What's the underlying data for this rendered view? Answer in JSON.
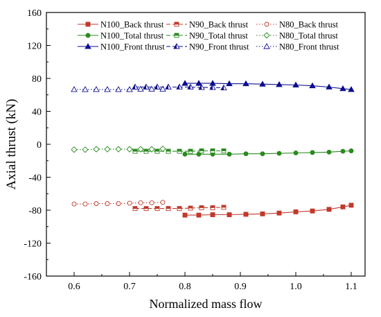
{
  "chart_data": {
    "type": "line",
    "title": "",
    "xlabel": "Normalized mass flow",
    "ylabel": "Axial thrust (kN)",
    "xlim": [
      0.55,
      1.125
    ],
    "ylim": [
      -160,
      160
    ],
    "x_ticks": [
      "0.6",
      "0.7",
      "0.8",
      "0.9",
      "1.0",
      "1.1"
    ],
    "y_ticks": [
      "-160",
      "-120",
      "-80",
      "-40",
      "0",
      "40",
      "80",
      "120",
      "160"
    ],
    "grid": false,
    "legend_position": "top-right",
    "colors": {
      "back": "#c0392b",
      "total": "#2a8a1f",
      "front": "#0d0d8f"
    },
    "series": [
      {
        "name": "N100_Back thrust",
        "group": "back",
        "speed": "N100",
        "marker": "square",
        "filled": true,
        "line": "solid",
        "x": [
          0.8,
          0.825,
          0.85,
          0.88,
          0.91,
          0.94,
          0.97,
          1.0,
          1.03,
          1.06,
          1.085,
          1.1
        ],
        "y": [
          -86,
          -86,
          -85.5,
          -85.5,
          -85,
          -84.5,
          -83.5,
          -82,
          -81,
          -79,
          -76,
          -74
        ]
      },
      {
        "name": "N90_Back thrust",
        "group": "back",
        "speed": "N90",
        "marker": "half-square",
        "filled": false,
        "line": "dash",
        "x": [
          0.71,
          0.73,
          0.75,
          0.77,
          0.79,
          0.81,
          0.83,
          0.85,
          0.87
        ],
        "y": [
          -78,
          -78,
          -78,
          -78,
          -78,
          -77.5,
          -77,
          -77,
          -76.5
        ]
      },
      {
        "name": "N80_Back thrust",
        "group": "back",
        "speed": "N80",
        "marker": "circle",
        "filled": false,
        "line": "dot",
        "x": [
          0.6,
          0.62,
          0.64,
          0.66,
          0.68,
          0.7,
          0.72,
          0.74,
          0.76
        ],
        "y": [
          -72.5,
          -72.5,
          -72,
          -72,
          -72,
          -71.5,
          -71,
          -71,
          -70.5
        ]
      },
      {
        "name": "N100_Total thrust",
        "group": "total",
        "speed": "N100",
        "marker": "circle",
        "filled": true,
        "line": "solid",
        "x": [
          0.8,
          0.825,
          0.85,
          0.88,
          0.91,
          0.94,
          0.97,
          1.0,
          1.03,
          1.06,
          1.085,
          1.1
        ],
        "y": [
          -12,
          -12,
          -12,
          -12,
          -11.5,
          -11.5,
          -11,
          -10.5,
          -10,
          -9.5,
          -8.5,
          -8
        ]
      },
      {
        "name": "N90_Total thrust",
        "group": "total",
        "speed": "N90",
        "marker": "half-square",
        "filled": false,
        "line": "dash",
        "x": [
          0.71,
          0.73,
          0.75,
          0.77,
          0.79,
          0.81,
          0.83,
          0.85,
          0.87
        ],
        "y": [
          -8.5,
          -8.5,
          -8.5,
          -8.5,
          -8.5,
          -8.5,
          -8,
          -8,
          -8
        ]
      },
      {
        "name": "N80_Total thrust",
        "group": "total",
        "speed": "N80",
        "marker": "diamond",
        "filled": false,
        "line": "dot",
        "x": [
          0.6,
          0.62,
          0.64,
          0.66,
          0.68,
          0.7,
          0.72,
          0.74,
          0.76
        ],
        "y": [
          -6.5,
          -6.5,
          -6,
          -6,
          -6,
          -6,
          -6,
          -6,
          -5.5
        ]
      },
      {
        "name": "N100_Front thrust",
        "group": "front",
        "speed": "N100",
        "marker": "triangle",
        "filled": true,
        "line": "solid",
        "x": [
          0.8,
          0.825,
          0.85,
          0.88,
          0.91,
          0.94,
          0.97,
          1.0,
          1.03,
          1.06,
          1.085,
          1.1
        ],
        "y": [
          74,
          74,
          74,
          73.5,
          73.5,
          73,
          72.5,
          72,
          71,
          69.5,
          67.5,
          66.5
        ]
      },
      {
        "name": "N90_Front thrust",
        "group": "front",
        "speed": "N90",
        "marker": "half-triangle",
        "filled": false,
        "line": "dash",
        "x": [
          0.71,
          0.73,
          0.75,
          0.77,
          0.79,
          0.81,
          0.83,
          0.85,
          0.87
        ],
        "y": [
          69.5,
          69.5,
          69.5,
          69.5,
          69.5,
          69.5,
          69,
          69,
          68.5
        ]
      },
      {
        "name": "N80_Front thrust",
        "group": "front",
        "speed": "N80",
        "marker": "triangle",
        "filled": false,
        "line": "dot",
        "x": [
          0.6,
          0.62,
          0.64,
          0.66,
          0.68,
          0.7,
          0.72,
          0.74,
          0.76
        ],
        "y": [
          66.5,
          66.5,
          66.5,
          66.5,
          66.5,
          66.5,
          67,
          67,
          67
        ]
      }
    ]
  }
}
